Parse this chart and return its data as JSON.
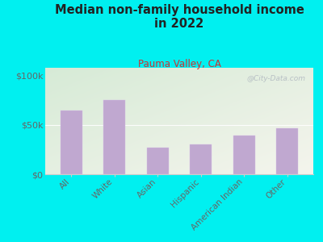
{
  "title": "Median non-family household income\nin 2022",
  "subtitle": "Pauma Valley, CA",
  "categories": [
    "All",
    "White",
    "Asian",
    "Hispanic",
    "American Indian",
    "Other"
  ],
  "values": [
    65000,
    75000,
    27000,
    30000,
    39000,
    47000
  ],
  "bar_color": "#c0a8d0",
  "bar_edge_color": "#d8c0e8",
  "yticks": [
    0,
    50000,
    100000
  ],
  "ytick_labels": [
    "$0",
    "$50k",
    "$100k"
  ],
  "ylim": [
    0,
    108000
  ],
  "background_color": "#00f0f0",
  "plot_bg_color_top_left": "#d8ecd8",
  "plot_bg_color_bottom_right": "#f5f5ee",
  "title_color": "#222222",
  "subtitle_color": "#cc3333",
  "tick_color": "#666666",
  "watermark": "@City-Data.com",
  "title_fontsize": 10.5,
  "subtitle_fontsize": 8.5,
  "watermark_color": "#b0b8c0",
  "ylabel_fontsize": 8,
  "xlabel_fontsize": 7.5
}
